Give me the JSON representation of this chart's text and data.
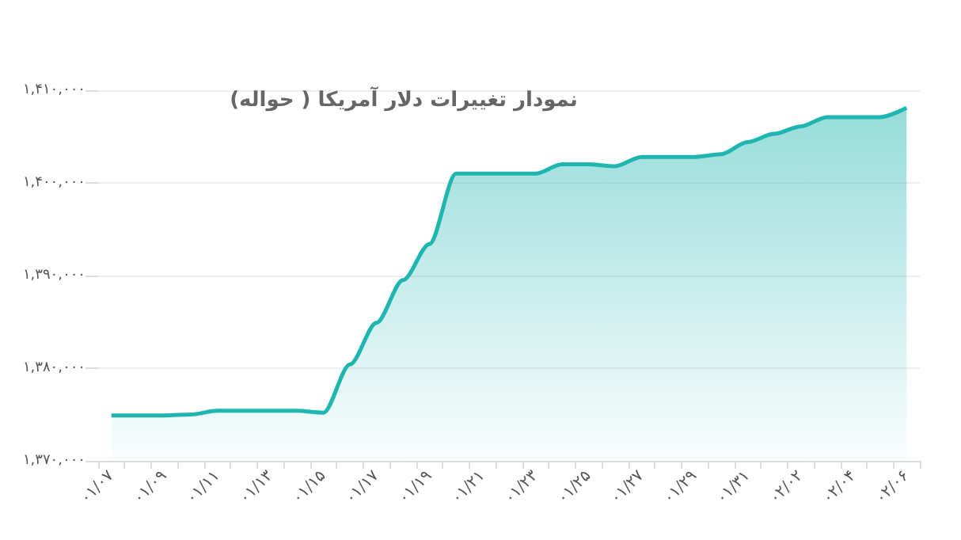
{
  "chart_data": {
    "type": "area",
    "title": "نمودار تغییرات دلار آمریکا ( حواله)",
    "categories": [
      "۰۱/۰۷",
      null,
      "۰۱/۰۹",
      null,
      "۰۱/۱۱",
      null,
      "۰۱/۱۳",
      null,
      "۰۱/۱۵",
      null,
      "۰۱/۱۷",
      null,
      "۰۱/۱۹",
      null,
      "۰۱/۲۱",
      null,
      "۰۱/۲۳",
      null,
      "۰۱/۲۵",
      null,
      "۰۱/۲۷",
      null,
      "۰۱/۲۹",
      null,
      "۰۱/۳۱",
      null,
      "۰۲/۰۲",
      null,
      "۰۲/۰۴",
      null,
      "۰۲/۰۶"
    ],
    "series": [
      {
        "color": "#1fb5b0",
        "values": [
          1374900,
          1374900,
          1374900,
          1375000,
          1375400,
          1375400,
          1375400,
          1375400,
          1375200,
          1380400,
          1384900,
          1389500,
          1393400,
          1401000,
          1401000,
          1401000,
          1401000,
          1402000,
          1402000,
          1401800,
          1402800,
          1402800,
          1402800,
          1403100,
          1404400,
          1405300,
          1406100,
          1407100,
          1407100,
          1407100,
          1408100
        ]
      }
    ],
    "ylim": [
      1370000,
      1410000
    ],
    "yticks": [
      {
        "value": 1370000,
        "label": "۱,۳۷۰,۰۰۰"
      },
      {
        "value": 1380000,
        "label": "۱,۳۸۰,۰۰۰"
      },
      {
        "value": 1390000,
        "label": "۱,۳۹۰,۰۰۰"
      },
      {
        "value": 1400000,
        "label": "۱,۴۰۰,۰۰۰"
      },
      {
        "value": 1410000,
        "label": "۱,۴۱۰,۰۰۰"
      }
    ],
    "grid": "y",
    "marker": "none",
    "line_style": "solid"
  }
}
